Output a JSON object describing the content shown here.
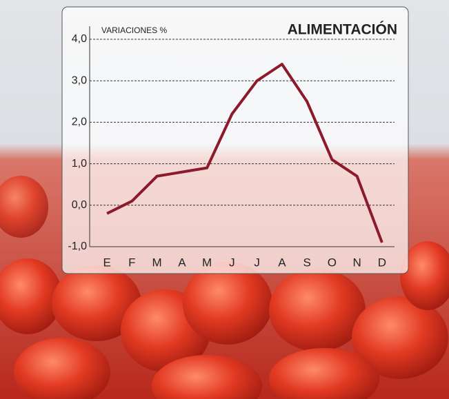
{
  "chart_data": {
    "type": "line",
    "title": "ALIMENTACIÓN",
    "y_label": "VARIACIONES %",
    "categories": [
      "E",
      "F",
      "M",
      "A",
      "M",
      "J",
      "J",
      "A",
      "S",
      "O",
      "N",
      "D"
    ],
    "series": [
      {
        "color": "#8b1a2b",
        "values": [
          -0.2,
          0.1,
          0.7,
          0.8,
          0.9,
          2.2,
          3.0,
          3.4,
          2.5,
          1.1,
          0.7,
          -0.9
        ]
      }
    ],
    "ylim": [
      -1,
      4
    ],
    "yticks": [
      {
        "value": -1,
        "label": "-1,0"
      },
      {
        "value": 0,
        "label": "0,0"
      },
      {
        "value": 1,
        "label": "1,0"
      },
      {
        "value": 2,
        "label": "2,0"
      },
      {
        "value": 3,
        "label": "3,0"
      },
      {
        "value": 4,
        "label": "4,0"
      }
    ],
    "grid": true
  }
}
